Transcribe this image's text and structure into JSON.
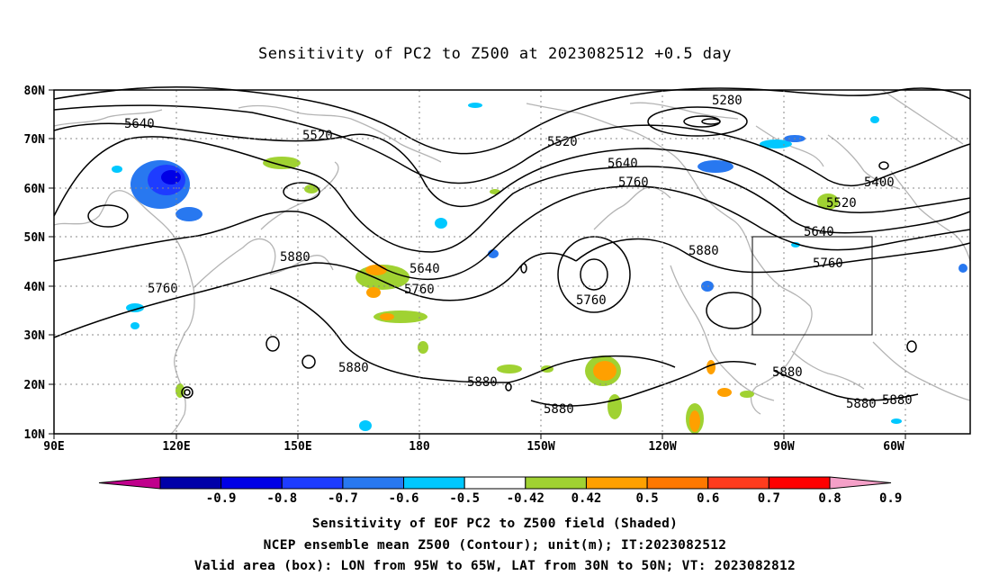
{
  "title": "Sensitivity of PC2 to Z500 at 2023082512 +0.5 day",
  "map": {
    "lon_labels": [
      "90E",
      "120E",
      "150E",
      "180",
      "150W",
      "120W",
      "90W",
      "60W"
    ],
    "lat_labels": [
      "80N",
      "70N",
      "60N",
      "50N",
      "40N",
      "30N",
      "20N",
      "10N"
    ],
    "contour_labels": [
      "5640",
      "5520",
      "5280",
      "5520",
      "5640",
      "5760",
      "5400",
      "5520",
      "5640",
      "5760",
      "5880",
      "5880",
      "5760",
      "5640",
      "5760",
      "5760",
      "5880",
      "5880",
      "5880",
      "5880",
      "5880",
      "5880"
    ],
    "valid_box": {
      "lon_range": "95W to 65W",
      "lat_range": "30N to 50N"
    }
  },
  "colorbar": {
    "labels": [
      "-0.9",
      "-0.8",
      "-0.7",
      "-0.6",
      "-0.5",
      "-0.42",
      "0.42",
      "0.5",
      "0.6",
      "0.7",
      "0.8",
      "0.9"
    ],
    "colors": [
      "#c0008c",
      "#0000a8",
      "#0000e6",
      "#1e3cff",
      "#2878f0",
      "#00c8ff",
      "#ffffff",
      "#a0d232",
      "#ffa000",
      "#ff7800",
      "#ff3c1e",
      "#ff0000",
      "#f5a0c8"
    ]
  },
  "captions": {
    "line1": "Sensitivity of EOF PC2 to Z500 field (Shaded)",
    "line2": "NCEP ensemble mean Z500 (Contour); unit(m); IT:2023082512",
    "line3": "Valid area (box): LON from 95W to 65W, LAT from 30N to 50N; VT: 2023082812"
  }
}
